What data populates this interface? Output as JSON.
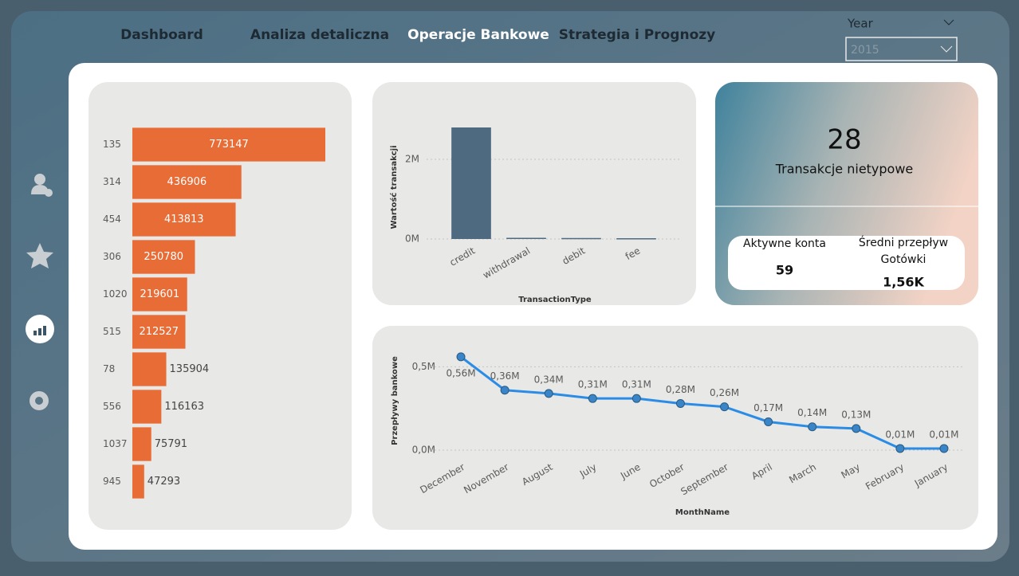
{
  "nav": [
    "Dashboard",
    "Analiza detaliczna",
    "Operacje Bankowe",
    "Strategia i Prognozy"
  ],
  "filter": {
    "label": "Year",
    "value": "2015"
  },
  "kpi": {
    "value": "28",
    "label": "Transakcje nietypowe",
    "cards": [
      {
        "label": "Aktywne konta",
        "value": "59"
      },
      {
        "label": "Średni przepływ Gotówki",
        "value": "1,56K"
      }
    ]
  },
  "chart_data": [
    {
      "type": "hbar",
      "color": "#e86c36",
      "categories": [
        "135",
        "314",
        "454",
        "306",
        "1020",
        "515",
        "78",
        "556",
        "1037",
        "945"
      ],
      "values": [
        773147,
        436906,
        413813,
        250780,
        219601,
        212527,
        135904,
        116163,
        75791,
        47293
      ]
    },
    {
      "type": "bar",
      "color": "#4e6a80",
      "x_label": "TransactionType",
      "y_label": "Wartość transakcji",
      "categories": [
        "credit",
        "withdrawal",
        "debit",
        "fee"
      ],
      "values": [
        2800000,
        30000,
        25000,
        20000
      ],
      "ylim": [
        0,
        3000000
      ],
      "yticks": [
        {
          "value": 0,
          "label": "0M"
        },
        {
          "value": 2000000,
          "label": "2M"
        }
      ],
      "grid": true
    },
    {
      "type": "line",
      "color": "#2b8ce6",
      "x_label": "MonthName",
      "y_label": "Przepływy bankowe",
      "categories": [
        "December",
        "November",
        "August",
        "July",
        "June",
        "October",
        "September",
        "April",
        "March",
        "May",
        "February",
        "January"
      ],
      "values": [
        560000,
        360000,
        340000,
        310000,
        310000,
        280000,
        260000,
        170000,
        140000,
        130000,
        10000,
        10000
      ],
      "value_labels": [
        "0,56M",
        "0,36M",
        "0,34M",
        "0,31M",
        "0,31M",
        "0,28M",
        "0,26M",
        "0,17M",
        "0,14M",
        "0,13M",
        "0,01M",
        "0,01M"
      ],
      "ylim": [
        -50000,
        600000
      ],
      "yticks": [
        {
          "value": 0,
          "label": "0,0M"
        },
        {
          "value": 500000,
          "label": "0,5M"
        }
      ],
      "grid": true
    }
  ]
}
